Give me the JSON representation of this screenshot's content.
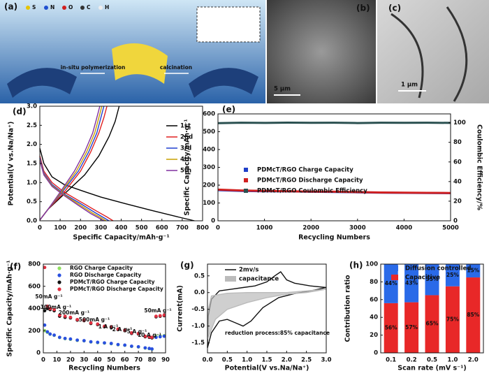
{
  "figure": {
    "panel_a": {
      "label": "(a)",
      "elements": [
        "S",
        "N",
        "O",
        "C",
        "H"
      ],
      "step1": "in-situ polymerization",
      "step2": "calcination"
    },
    "panel_b": {
      "label": "(b)",
      "scale": "5 μm"
    },
    "panel_c": {
      "label": "(c)",
      "scale": "1 μm"
    }
  },
  "chart_data": [
    {
      "type": "line",
      "panel_label": "(d)",
      "xlabel": "Specific Capacity/mAh·g⁻¹",
      "ylabel": "Potential(V vs.Na/Na⁺)",
      "xlim": [
        0,
        800
      ],
      "xticks": [
        0,
        100,
        200,
        300,
        400,
        500,
        600,
        700,
        800
      ],
      "ylim": [
        0,
        3
      ],
      "yticks": [
        {
          "value": 0,
          "label": "0.0"
        },
        0.5,
        {
          "value": 1,
          "label": "1.0"
        },
        1.5,
        {
          "value": 2,
          "label": "2.0"
        },
        2.5,
        {
          "value": 3,
          "label": "3.0"
        }
      ],
      "series": [
        {
          "name": "1st",
          "color": "#000000",
          "x": [
            0,
            20,
            60,
            120,
            200,
            300,
            420,
            550,
            680,
            760,
            null,
            0,
            40,
            120,
            220,
            290,
            340,
            370,
            390
          ],
          "values": [
            1.9,
            1.5,
            1.15,
            0.95,
            0.8,
            0.62,
            0.45,
            0.27,
            0.1,
            0,
            null,
            0.02,
            0.3,
            0.7,
            1.2,
            1.7,
            2.2,
            2.6,
            3
          ]
        },
        {
          "name": "2nd",
          "color": "#e02020",
          "x": [
            0,
            20,
            60,
            120,
            200,
            280,
            330,
            360,
            null,
            0,
            40,
            120,
            200,
            250,
            290,
            315,
            330
          ],
          "values": [
            1.7,
            1.3,
            1,
            0.75,
            0.5,
            0.25,
            0.1,
            0,
            null,
            0.02,
            0.3,
            0.75,
            1.3,
            1.8,
            2.3,
            2.7,
            3
          ]
        },
        {
          "name": "3rd",
          "color": "#2040d0",
          "x": [
            0,
            20,
            60,
            120,
            200,
            270,
            315,
            340,
            null,
            0,
            40,
            110,
            190,
            240,
            280,
            300,
            315
          ],
          "values": [
            1.65,
            1.25,
            0.95,
            0.7,
            0.45,
            0.22,
            0.08,
            0,
            null,
            0.02,
            0.3,
            0.75,
            1.3,
            1.8,
            2.3,
            2.7,
            3
          ]
        },
        {
          "name": "4th",
          "color": "#c8a000",
          "x": [
            0,
            20,
            60,
            120,
            190,
            260,
            305,
            325,
            null,
            0,
            40,
            105,
            180,
            230,
            270,
            290,
            305
          ],
          "values": [
            1.6,
            1.22,
            0.92,
            0.68,
            0.44,
            0.2,
            0.07,
            0,
            null,
            0.02,
            0.3,
            0.75,
            1.3,
            1.8,
            2.3,
            2.7,
            3
          ]
        },
        {
          "name": "5th",
          "color": "#8030a0",
          "x": [
            0,
            20,
            60,
            120,
            185,
            250,
            295,
            315,
            null,
            0,
            40,
            100,
            170,
            220,
            260,
            280,
            295
          ],
          "values": [
            1.58,
            1.2,
            0.9,
            0.66,
            0.42,
            0.19,
            0.06,
            0,
            null,
            0.02,
            0.3,
            0.75,
            1.3,
            1.8,
            2.3,
            2.7,
            3
          ]
        }
      ]
    },
    {
      "type": "line",
      "panel_label": "(e)",
      "xlabel": "Recycling Numbers",
      "ylabel": "Specific Capacity/mAh·g⁻¹",
      "y2label": "Coulombic Efficiency/%",
      "xlim": [
        0,
        5000
      ],
      "xticks": [
        0,
        1000,
        2000,
        3000,
        4000,
        5000
      ],
      "ylim": [
        0,
        600
      ],
      "yticks": [
        0,
        100,
        200,
        300,
        400,
        500,
        600
      ],
      "y2lim": [
        0,
        109
      ],
      "y2ticks": [
        0,
        20,
        40,
        60,
        80,
        100
      ],
      "x": [
        0,
        500,
        1000,
        1500,
        2000,
        2500,
        3000,
        3500,
        4000,
        4500,
        5000
      ],
      "series": [
        {
          "name": "PDMcT/RGO Charge Capacity",
          "color": "#1f3fc8",
          "values": [
            172,
            168,
            166,
            165,
            163,
            162,
            160,
            158,
            157,
            156,
            155
          ]
        },
        {
          "name": "PDMcT/RGO Discharge Capacity",
          "color": "#d02020",
          "values": [
            175,
            170,
            168,
            166,
            164,
            163,
            161,
            159,
            158,
            157,
            156
          ]
        },
        {
          "name": "PDMcT/RGO Coulombic Efficiency",
          "color": "#2a5050",
          "axis": "y2",
          "values": [
            99.5,
            100,
            99.8,
            100.1,
            99.9,
            100,
            99.7,
            100,
            99.9,
            100,
            99.8
          ]
        }
      ]
    },
    {
      "type": "scatter",
      "panel_label": "(f)",
      "xlabel": "Recycling Numbers",
      "ylabel": "Specific Capacity/mAh·g⁻¹",
      "xlim": [
        0,
        90
      ],
      "xticks": [
        0,
        10,
        20,
        30,
        40,
        50,
        60,
        70,
        80,
        90
      ],
      "ylim": [
        0,
        800
      ],
      "yticks": [
        0,
        200,
        400,
        600,
        800
      ],
      "x": [
        1,
        3,
        5,
        8,
        12,
        16,
        20,
        25,
        30,
        35,
        40,
        45,
        50,
        55,
        60,
        65,
        70,
        75,
        78,
        80,
        83,
        86,
        89
      ],
      "annotations": [
        "50mA g⁻¹",
        "100mA g⁻¹",
        "200mA g⁻¹",
        "500mA g⁻¹",
        "1 A g⁻¹",
        "2 A g⁻¹",
        "5 A g⁻¹",
        "10 A g⁻¹",
        "50mA g⁻¹"
      ],
      "series": [
        {
          "name": "RGO Charge Capacity",
          "color": "#90e060",
          "values": [
            200,
            185,
            168,
            158,
            138,
            128,
            122,
            112,
            108,
            98,
            92,
            88,
            82,
            73,
            68,
            58,
            53,
            43,
            38,
            33,
            150,
            152,
            155
          ]
        },
        {
          "name": "RGO Discharge Capacity",
          "color": "#2a50e0",
          "values": [
            250,
            190,
            170,
            160,
            140,
            130,
            125,
            115,
            110,
            100,
            95,
            90,
            85,
            75,
            70,
            60,
            55,
            45,
            40,
            35,
            140,
            145,
            150
          ]
        },
        {
          "name": "PDMcT/RGO Charge Capacity",
          "color": "#111111",
          "values": [
            380,
            400,
            390,
            380,
            330,
            320,
            315,
            295,
            290,
            265,
            255,
            235,
            230,
            210,
            200,
            175,
            170,
            145,
            140,
            135,
            325,
            330,
            335
          ]
        },
        {
          "name": "PDMcT/RGO Discharge Capacity",
          "color": "#e03040",
          "values": [
            770,
            420,
            400,
            390,
            340,
            330,
            320,
            300,
            295,
            270,
            260,
            240,
            235,
            215,
            205,
            180,
            175,
            150,
            145,
            140,
            330,
            335,
            340
          ]
        }
      ]
    },
    {
      "type": "line",
      "panel_label": "(g)",
      "xlabel": "Potential(V vs.Na/Na⁺)",
      "ylabel": "Current(mA)",
      "annotation": "reduction process:85% capacitance",
      "xlim": [
        0,
        3
      ],
      "xticks": [
        {
          "value": 0,
          "label": "0.0"
        },
        0.5,
        {
          "value": 1,
          "label": "1.0"
        },
        1.5,
        {
          "value": 2,
          "label": "2.0"
        },
        2.5,
        {
          "value": 3,
          "label": "3.0"
        }
      ],
      "ylim": [
        -1.8,
        0.85
      ],
      "yticks": [
        0.5,
        {
          "value": 0,
          "label": "0.0"
        },
        -0.5,
        {
          "value": -1,
          "label": "-1.0"
        },
        -1.5
      ],
      "series": [
        {
          "name": "2mv/s",
          "color": "#111111",
          "x": [
            0,
            0.1,
            0.3,
            0.5,
            0.7,
            0.9,
            1.1,
            1.4,
            1.8,
            2.2,
            2.6,
            3,
            2.6,
            2.2,
            2,
            1.85,
            1.7,
            1.5,
            1.2,
            0.9,
            0.6,
            0.3,
            0.1,
            0.02,
            0
          ],
          "values": [
            -1.65,
            -1.2,
            -0.85,
            -0.8,
            -0.9,
            -1,
            -0.85,
            -0.45,
            -0.15,
            -0.03,
            0.05,
            0.15,
            0.2,
            0.28,
            0.38,
            0.62,
            0.5,
            0.32,
            0.2,
            0.15,
            0.1,
            0.05,
            -0.2,
            -0.7,
            -1.65
          ]
        },
        {
          "name": "capacitance",
          "color": "#bbbbbb",
          "fill": true,
          "x": [
            0,
            0.2,
            0.5,
            1,
            1.5,
            2,
            2.5,
            3,
            2.5,
            2,
            1.5,
            1,
            0.5,
            0.1,
            0
          ],
          "values": [
            -1.4,
            -0.8,
            -0.5,
            -0.3,
            -0.15,
            -0.05,
            0,
            0.1,
            0.05,
            0,
            0,
            0,
            -0.02,
            -0.1,
            -0.6
          ]
        }
      ]
    },
    {
      "type": "bar",
      "panel_label": "(h)",
      "xlabel": "Scan rate (mV s⁻¹)",
      "ylabel": "Contribution ratio",
      "categories": [
        "0.1",
        "0.2",
        "0.5",
        "1.0",
        "2.0"
      ],
      "ylim": [
        0,
        100
      ],
      "yticks": [
        0,
        20,
        40,
        60,
        80,
        100
      ],
      "series": [
        {
          "name": "Capacitive",
          "color": "#e82828",
          "values": [
            56,
            57,
            65,
            75,
            85
          ],
          "value_labels": [
            "56%",
            "57%",
            "65%",
            "75%",
            "85%"
          ]
        },
        {
          "name": "Diffusion controlled",
          "color": "#2a6ae8",
          "values": [
            44,
            43,
            35,
            25,
            15
          ],
          "value_labels": [
            "44%",
            "43%",
            "35%",
            "25%",
            "15%"
          ]
        }
      ]
    }
  ]
}
